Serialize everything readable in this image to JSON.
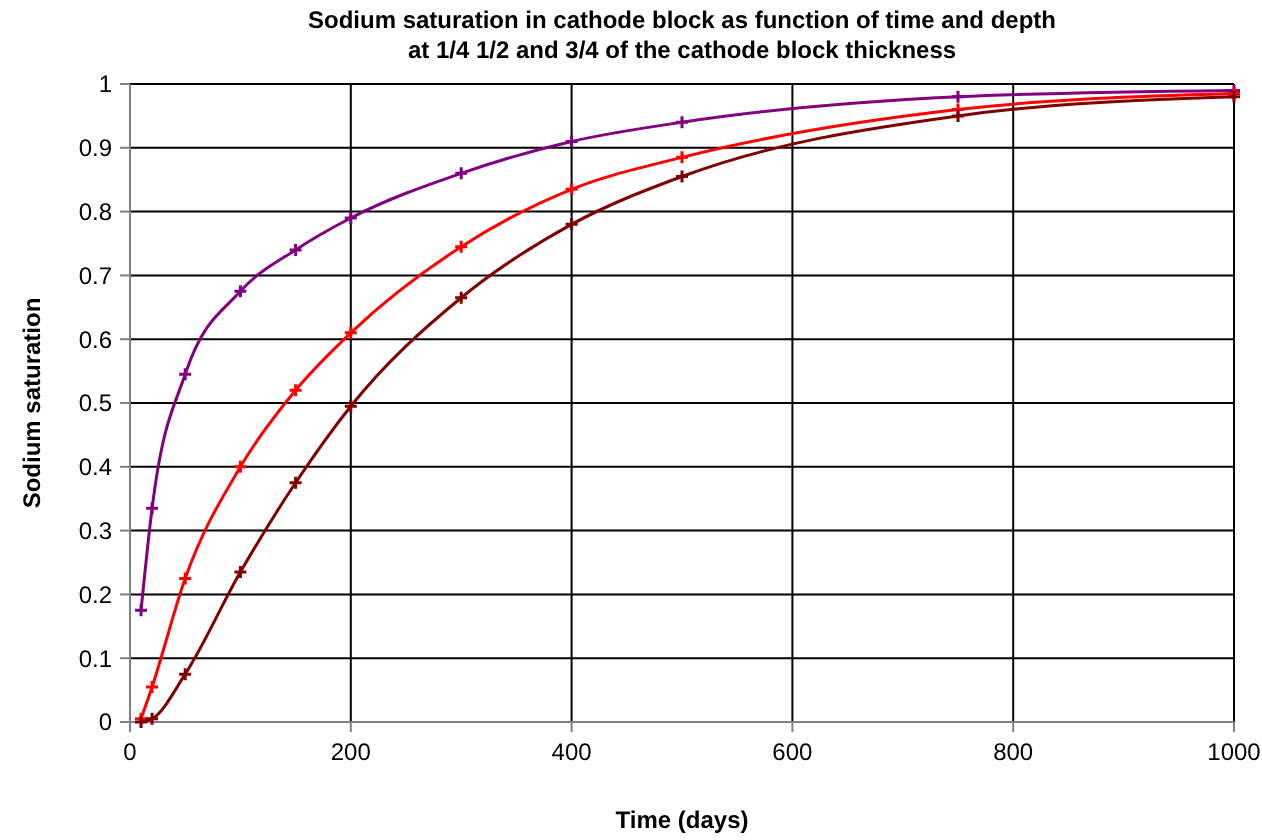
{
  "chart_data": {
    "type": "line",
    "title": "Sodium saturation in cathode block as function of time and depth\nat 1/4 1/2 and 3/4 of the cathode block thickness",
    "xlabel": "Time (days)",
    "ylabel": "Sodium saturation",
    "x": [
      10,
      20,
      50,
      100,
      150,
      200,
      300,
      400,
      500,
      750,
      1000
    ],
    "series": [
      {
        "color": "#800080",
        "values": [
          0.175,
          0.335,
          0.545,
          0.675,
          0.74,
          0.79,
          0.86,
          0.91,
          0.94,
          0.98,
          0.99
        ]
      },
      {
        "color": "#ff0000",
        "values": [
          0.005,
          0.055,
          0.225,
          0.4,
          0.52,
          0.61,
          0.745,
          0.835,
          0.885,
          0.96,
          0.985
        ]
      },
      {
        "color": "#800000",
        "values": [
          0,
          0.005,
          0.075,
          0.235,
          0.375,
          0.495,
          0.665,
          0.78,
          0.855,
          0.95,
          0.98
        ]
      }
    ],
    "xlim": [
      0,
      1000
    ],
    "xticks": [
      0,
      200,
      400,
      600,
      800,
      1000
    ],
    "ylim": [
      0,
      1
    ],
    "yticks": [
      0,
      0.1,
      0.2,
      0.3,
      0.4,
      0.5,
      0.6,
      0.7,
      0.8,
      0.9,
      1
    ],
    "grid": true,
    "marker": "cross",
    "line_style": "solid"
  }
}
